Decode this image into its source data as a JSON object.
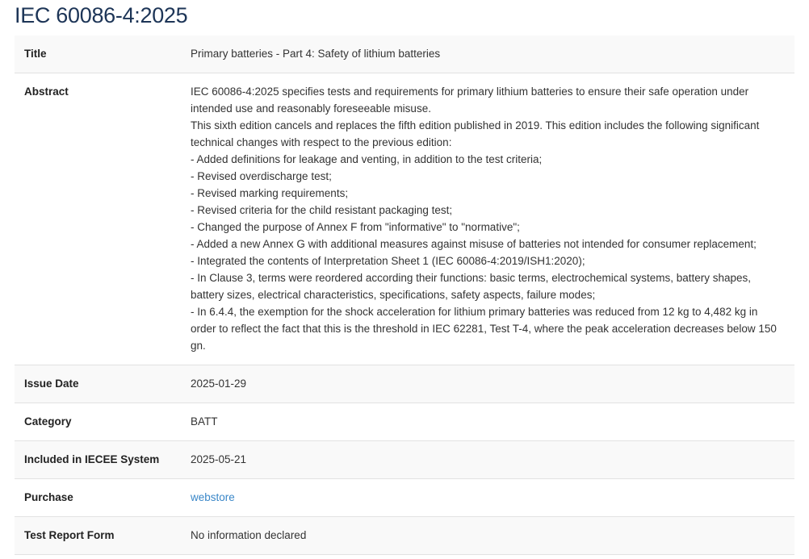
{
  "heading": "IEC 60086-4:2025",
  "rows": {
    "title": {
      "label": "Title",
      "value": "Primary batteries - Part 4: Safety of lithium batteries"
    },
    "abstract": {
      "label": "Abstract",
      "lines": [
        "IEC 60086-4:2025 specifies tests and requirements for primary lithium batteries to ensure their safe operation under intended use and reasonably foreseeable misuse.",
        "This sixth edition cancels and replaces the fifth edition published in 2019. This edition includes the following significant technical changes with respect to the previous edition:",
        "- Added definitions for leakage and venting, in addition to the test criteria;",
        "- Revised overdischarge test;",
        "- Revised marking requirements;",
        "- Revised criteria for the child resistant packaging test;",
        "- Changed the purpose of Annex F from \"informative\" to \"normative\";",
        "- Added a new Annex G with additional measures against misuse of batteries not intended for consumer replacement;",
        "- Integrated the contents of Interpretation Sheet 1 (IEC 60086-4:2019/ISH1:2020);",
        "- In Clause 3, terms were reordered according their functions: basic terms, electrochemical systems, battery shapes, battery sizes, electrical characteristics, specifications, safety aspects, failure modes;",
        "- In 6.4.4, the exemption for the shock acceleration for lithium primary batteries was reduced from 12 kg to 4,482 kg in order to reflect the fact that this is the threshold in IEC 62281, Test T-4, where the peak acceleration decreases below 150 gn."
      ]
    },
    "issue_date": {
      "label": "Issue Date",
      "value": "2025-01-29"
    },
    "category": {
      "label": "Category",
      "value": "BATT"
    },
    "included": {
      "label": "Included in IECEE System",
      "value": "2025-05-21"
    },
    "purchase": {
      "label": "Purchase",
      "value": "webstore"
    },
    "trf": {
      "label": "Test Report Form",
      "value": "No information declared"
    }
  },
  "colors": {
    "heading": "#1d3557",
    "link": "#3a87c8",
    "row_alt": "#f9f9f9"
  }
}
